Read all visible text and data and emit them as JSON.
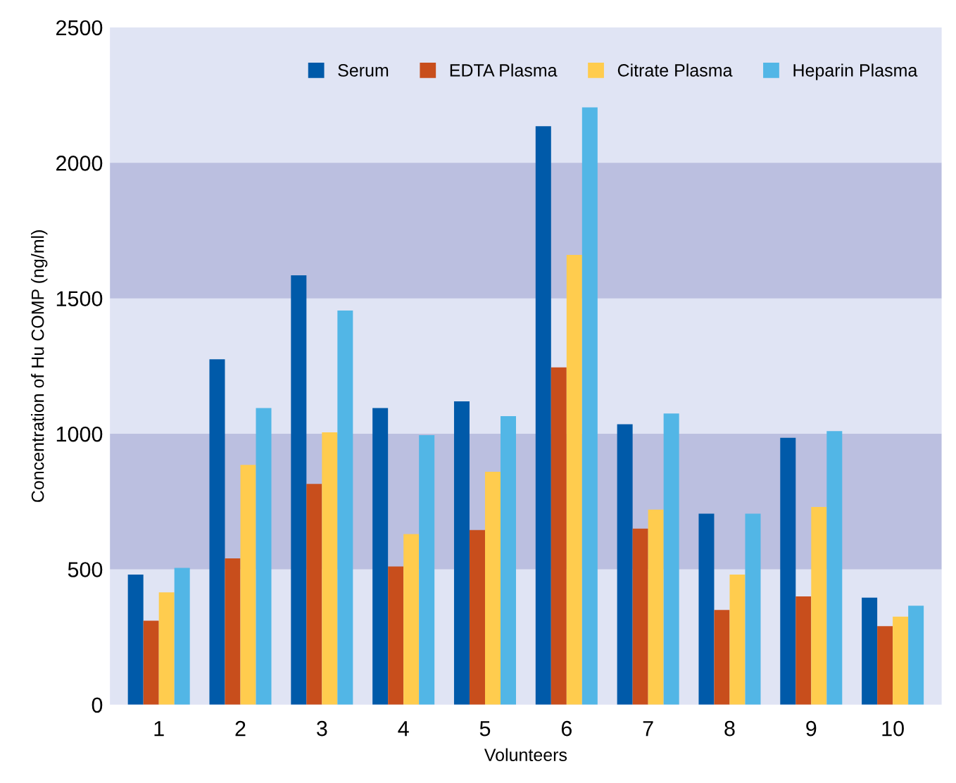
{
  "chart_data": {
    "type": "bar",
    "xlabel": "Volunteers",
    "ylabel": "Concentration of Hu COMP (ng/ml)",
    "categories": [
      "1",
      "2",
      "3",
      "4",
      "5",
      "6",
      "7",
      "8",
      "9",
      "10"
    ],
    "series": [
      {
        "name": "Serum",
        "color": "#005aa9",
        "values": [
          480,
          1275,
          1585,
          1095,
          1120,
          2135,
          1035,
          705,
          985,
          395
        ]
      },
      {
        "name": "EDTA Plasma",
        "color": "#c84e1c",
        "values": [
          310,
          540,
          815,
          510,
          645,
          1245,
          650,
          350,
          400,
          290
        ]
      },
      {
        "name": "Citrate Plasma",
        "color": "#ffcc4e",
        "values": [
          415,
          885,
          1005,
          630,
          860,
          1660,
          720,
          480,
          730,
          325
        ]
      },
      {
        "name": "Heparin Plasma",
        "color": "#52b6e6",
        "values": [
          505,
          1095,
          1455,
          995,
          1065,
          2205,
          1075,
          705,
          1010,
          365
        ]
      }
    ],
    "ylim": [
      0,
      2500
    ],
    "yticks": [
      0,
      500,
      1000,
      1500,
      2000,
      2500
    ],
    "bands": [
      {
        "axis": "y",
        "from": 500,
        "to": 1000,
        "color": "#bbbfe0"
      },
      {
        "axis": "y",
        "from": 1500,
        "to": 2000,
        "color": "#bbbfe0"
      }
    ],
    "legend": "top right",
    "grid": false
  }
}
